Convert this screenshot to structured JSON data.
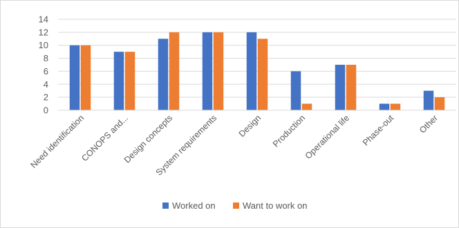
{
  "chart_data": {
    "type": "bar",
    "categories": [
      "Need identification",
      "CONOPS and...",
      "Design concepts",
      "System requirements",
      "Design",
      "Production",
      "Operational life",
      "Phase-out",
      "Other"
    ],
    "series": [
      {
        "name": "Worked on",
        "color": "#4472C4",
        "values": [
          10,
          9,
          11,
          12,
          12,
          6,
          7,
          1,
          3
        ]
      },
      {
        "name": "Want to work on",
        "color": "#ED7D31",
        "values": [
          10,
          9,
          12,
          12,
          11,
          1,
          7,
          1,
          2
        ]
      }
    ],
    "ylim": [
      0,
      14
    ],
    "yticks": [
      0,
      2,
      4,
      6,
      8,
      10,
      12,
      14
    ],
    "grid": true,
    "legend_position": "bottom"
  }
}
